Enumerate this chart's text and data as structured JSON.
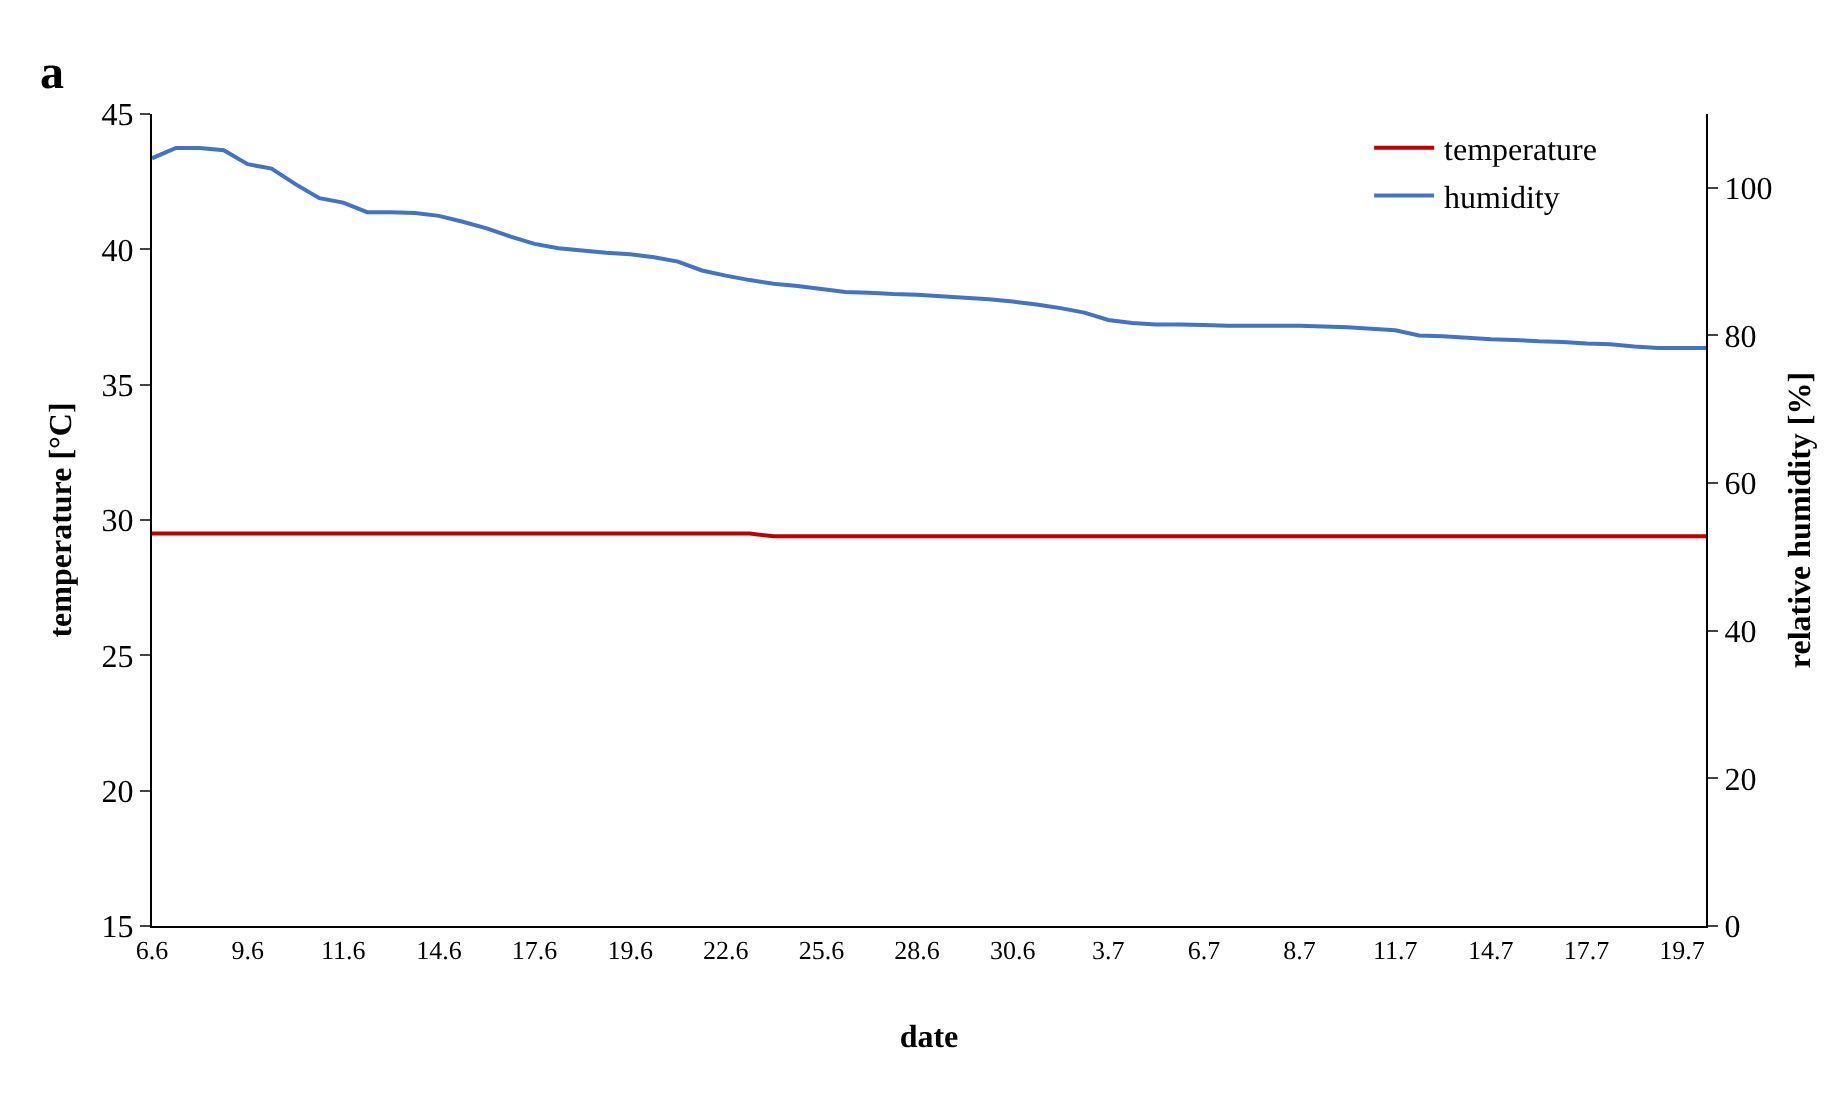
{
  "chart_data": {
    "type": "line",
    "xlabel": "date",
    "ylabel": "temperature [°C]",
    "y2label": "relative humidity [%]",
    "annotations": [
      "a"
    ],
    "categories": [
      "6.6",
      null,
      null,
      null,
      "9.6",
      null,
      null,
      null,
      "11.6",
      null,
      null,
      null,
      "14.6",
      null,
      null,
      null,
      "17.6",
      null,
      null,
      null,
      "19.6",
      null,
      null,
      null,
      "22.6",
      null,
      null,
      null,
      "25.6",
      null,
      null,
      null,
      "28.6",
      null,
      null,
      null,
      "30.6",
      null,
      null,
      null,
      "3.7",
      null,
      null,
      null,
      "6.7",
      null,
      null,
      null,
      "8.7",
      null,
      null,
      null,
      "11.7",
      null,
      null,
      null,
      "14.7",
      null,
      null,
      null,
      "17.7",
      null,
      null,
      null,
      "19.7",
      null
    ],
    "series": [
      {
        "name": "temperature",
        "color": "#c00000",
        "values": [
          29.5,
          29.5,
          29.5,
          29.5,
          29.5,
          29.5,
          29.5,
          29.5,
          29.5,
          29.5,
          29.5,
          29.5,
          29.5,
          29.5,
          29.5,
          29.5,
          29.5,
          29.5,
          29.5,
          29.5,
          29.5,
          29.5,
          29.5,
          29.5,
          29.5,
          29.5,
          29.4,
          29.4,
          29.4,
          29.4,
          29.4,
          29.4,
          29.4,
          29.4,
          29.4,
          29.4,
          29.4,
          29.4,
          29.4,
          29.4,
          29.4,
          29.4,
          29.4,
          29.4,
          29.4,
          29.4,
          29.4,
          29.4,
          29.4,
          29.4,
          29.4,
          29.4,
          29.4,
          29.4,
          29.4,
          29.4,
          29.4,
          29.4,
          29.4,
          29.4,
          29.4,
          29.4,
          29.4,
          29.4,
          29.4,
          29.4
        ]
      },
      {
        "name": "humidity",
        "color": "#4472c4",
        "axis": "y2",
        "values": [
          104.0,
          105.4,
          105.4,
          105.1,
          103.2,
          102.6,
          100.5,
          98.6,
          98.0,
          96.7,
          96.7,
          96.6,
          96.2,
          95.4,
          94.5,
          93.4,
          92.4,
          91.8,
          91.5,
          91.2,
          91.0,
          90.6,
          90.0,
          88.8,
          88.1,
          87.5,
          87.0,
          86.7,
          86.3,
          85.9,
          85.8,
          85.6,
          85.5,
          85.3,
          85.1,
          84.9,
          84.6,
          84.2,
          83.7,
          83.1,
          82.1,
          81.7,
          81.5,
          81.5,
          81.4,
          81.3,
          81.3,
          81.3,
          81.3,
          81.2,
          81.1,
          80.9,
          80.7,
          80.0,
          79.9,
          79.7,
          79.5,
          79.4,
          79.2,
          79.1,
          78.9,
          78.8,
          78.5,
          78.3,
          78.3,
          78.3
        ]
      }
    ],
    "ylim": [
      15,
      45
    ],
    "yticks": [
      15,
      20,
      25,
      30,
      35,
      40,
      45
    ],
    "y2lim": [
      0,
      110
    ],
    "y2ticks": [
      0,
      20,
      40,
      60,
      80,
      100
    ],
    "grid": false,
    "legend": "top right",
    "marker": "none",
    "line_style": "solid"
  }
}
